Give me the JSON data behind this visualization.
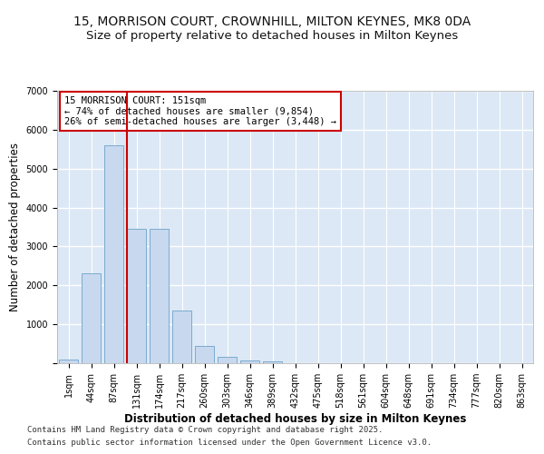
{
  "title_line1": "15, MORRISON COURT, CROWNHILL, MILTON KEYNES, MK8 0DA",
  "title_line2": "Size of property relative to detached houses in Milton Keynes",
  "xlabel": "Distribution of detached houses by size in Milton Keynes",
  "ylabel": "Number of detached properties",
  "bar_labels": [
    "1sqm",
    "44sqm",
    "87sqm",
    "131sqm",
    "174sqm",
    "217sqm",
    "260sqm",
    "303sqm",
    "346sqm",
    "389sqm",
    "432sqm",
    "475sqm",
    "518sqm",
    "561sqm",
    "604sqm",
    "648sqm",
    "691sqm",
    "734sqm",
    "777sqm",
    "820sqm",
    "863sqm"
  ],
  "bar_values": [
    100,
    2300,
    5600,
    3450,
    3450,
    1350,
    450,
    170,
    80,
    50,
    0,
    0,
    0,
    0,
    0,
    0,
    0,
    0,
    0,
    0,
    0
  ],
  "bar_color": "#c8d8ee",
  "bar_edge_color": "#7aabcf",
  "vline_x": 3.0,
  "vline_color": "#cc0000",
  "annotation_text": "15 MORRISON COURT: 151sqm\n← 74% of detached houses are smaller (9,854)\n26% of semi-detached houses are larger (3,448) →",
  "ylim": [
    0,
    7000
  ],
  "yticks": [
    0,
    1000,
    2000,
    3000,
    4000,
    5000,
    6000,
    7000
  ],
  "fig_background_color": "#ffffff",
  "plot_background_color": "#dce8f5",
  "grid_color": "#ffffff",
  "footer_line1": "Contains HM Land Registry data © Crown copyright and database right 2025.",
  "footer_line2": "Contains public sector information licensed under the Open Government Licence v3.0.",
  "title1_fontsize": 10,
  "title2_fontsize": 9.5,
  "axis_label_fontsize": 8.5,
  "tick_fontsize": 7,
  "annotation_fontsize": 7.5,
  "footer_fontsize": 6.5
}
